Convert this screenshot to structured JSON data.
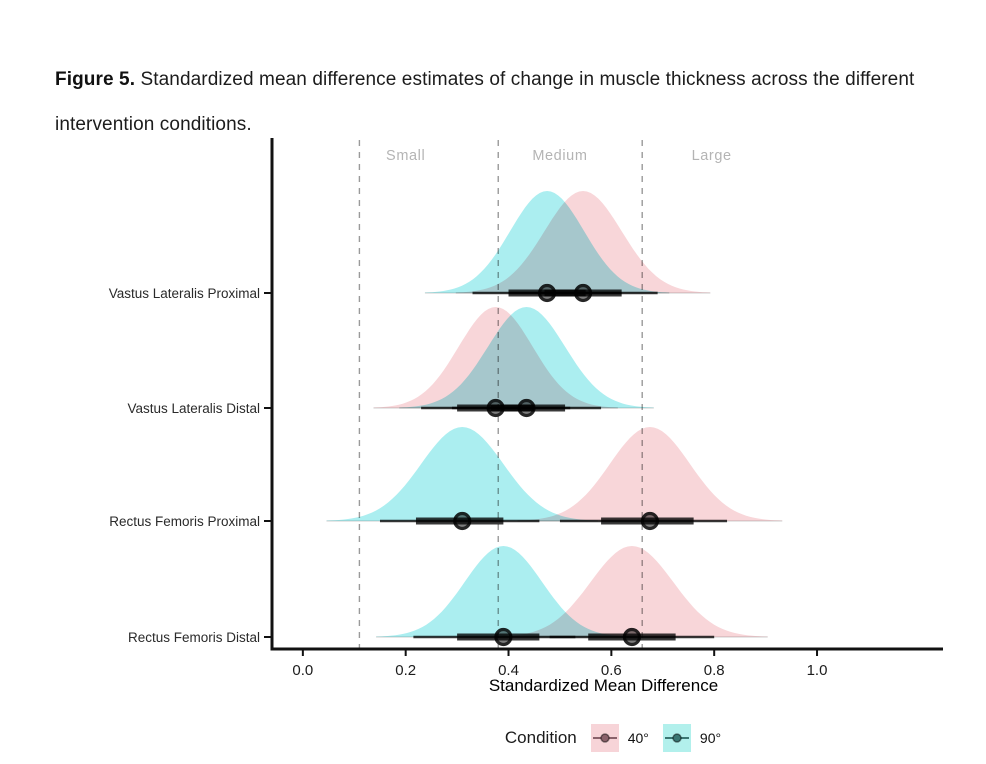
{
  "figure": {
    "label": "Figure 5.",
    "caption": " Standardized mean difference estimates of change in muscle thickness across the different intervention conditions."
  },
  "chart_data": {
    "type": "area",
    "subtype": "density-ridges-with-point-intervals",
    "title": "",
    "xlabel": "Standardized Mean Difference",
    "ylabel": "",
    "xlim": [
      -0.06,
      1.245
    ],
    "x_ticks": [
      0.0,
      0.2,
      0.4,
      0.6,
      0.8,
      1.0
    ],
    "x_tick_labels": [
      "0.0",
      "0.2",
      "0.4",
      "0.6",
      "0.8",
      "1.0"
    ],
    "grid": false,
    "legend_position": "bottom",
    "threshold_lines": [
      {
        "region_label": "Small",
        "x": 0.11,
        "label_x": 0.2
      },
      {
        "region_label": "Medium",
        "x": 0.38,
        "label_x": 0.5
      },
      {
        "region_label": "Large",
        "x": 0.66,
        "label_x": 0.795
      }
    ],
    "rows": [
      {
        "label": "Vastus Lateralis Proximal",
        "series": [
          {
            "condition": "40°",
            "mean": 0.545,
            "sd": 0.075,
            "interval_66": [
              0.47,
              0.62
            ],
            "interval_95": [
              0.4,
              0.69
            ]
          },
          {
            "condition": "90°",
            "mean": 0.475,
            "sd": 0.072,
            "interval_66": [
              0.4,
              0.55
            ],
            "interval_95": [
              0.33,
              0.62
            ]
          }
        ]
      },
      {
        "label": "Vastus Lateralis Distal",
        "series": [
          {
            "condition": "40°",
            "mean": 0.375,
            "sd": 0.072,
            "interval_66": [
              0.3,
              0.45
            ],
            "interval_95": [
              0.23,
              0.52
            ]
          },
          {
            "condition": "90°",
            "mean": 0.435,
            "sd": 0.075,
            "interval_66": [
              0.365,
              0.51
            ],
            "interval_95": [
              0.29,
              0.58
            ]
          }
        ]
      },
      {
        "label": "Rectus Femoris Proximal",
        "series": [
          {
            "condition": "40°",
            "mean": 0.675,
            "sd": 0.078,
            "interval_66": [
              0.58,
              0.76
            ],
            "interval_95": [
              0.5,
              0.825
            ]
          },
          {
            "condition": "90°",
            "mean": 0.31,
            "sd": 0.08,
            "interval_66": [
              0.22,
              0.39
            ],
            "interval_95": [
              0.15,
              0.46
            ]
          }
        ]
      },
      {
        "label": "Rectus Femoris Distal",
        "series": [
          {
            "condition": "40°",
            "mean": 0.64,
            "sd": 0.08,
            "interval_66": [
              0.555,
              0.725
            ],
            "interval_95": [
              0.48,
              0.8
            ]
          },
          {
            "condition": "90°",
            "mean": 0.39,
            "sd": 0.075,
            "interval_66": [
              0.3,
              0.46
            ],
            "interval_95": [
              0.215,
              0.53
            ]
          }
        ]
      }
    ],
    "legend": {
      "title": "Condition",
      "entries": [
        {
          "label": "40°",
          "swatch_color": "#f7d4d8",
          "glyph_color": "#8a626b"
        },
        {
          "label": "90°",
          "swatch_color": "#b2f0ec",
          "glyph_color": "#3a7672"
        }
      ]
    },
    "colors": {
      "density_40": "#f8d6d9",
      "density_90": "#abeef0",
      "interval": "#3a3a3a",
      "dot_fill": "#7d7d7d",
      "dot_ring": "#262626",
      "threshold_line": "#9a9a9a",
      "region_label": "#b4b4b4",
      "axis": "#111111",
      "density_baseline": "#cccccc"
    }
  }
}
